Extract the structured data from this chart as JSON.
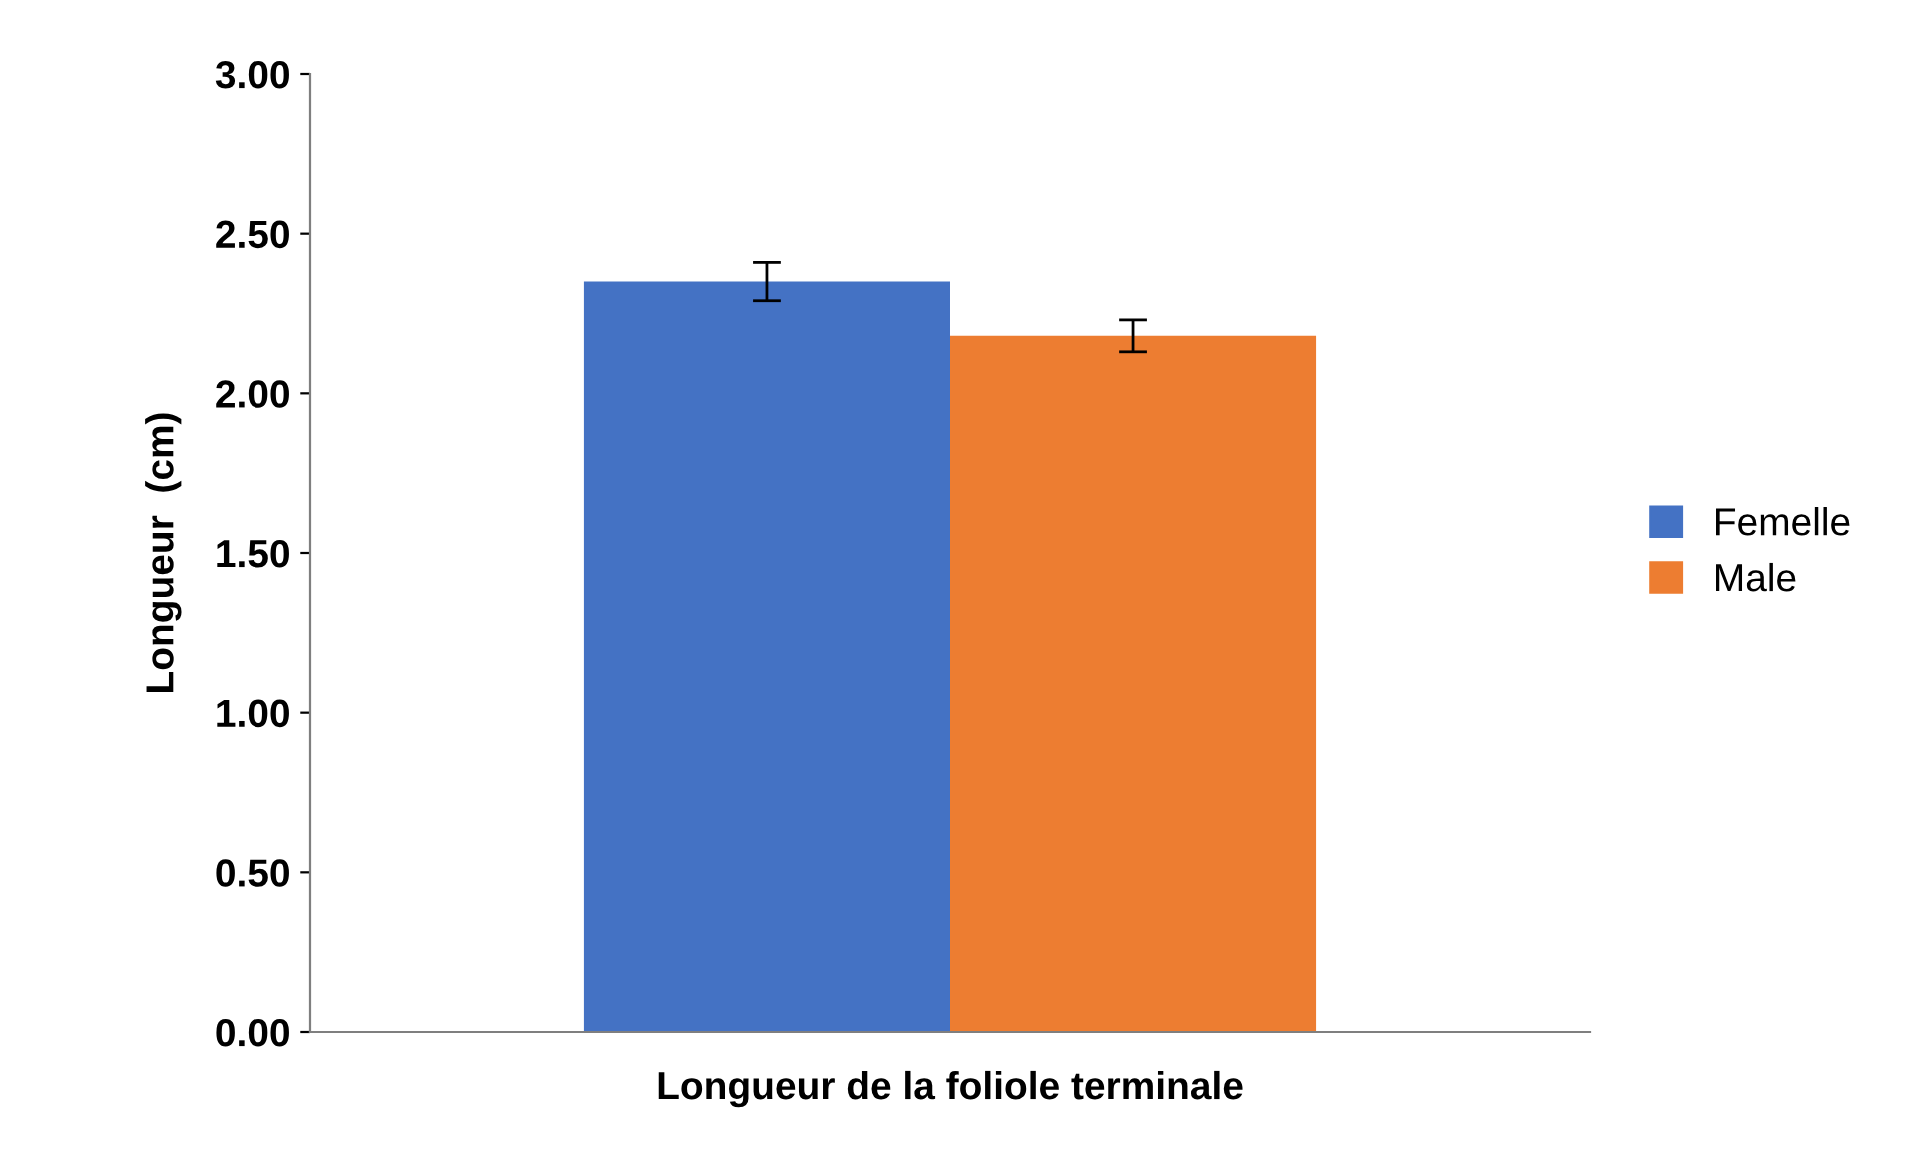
{
  "chart_data": {
    "type": "bar",
    "ylabel": "Longueur  (cm)",
    "categories": [
      "Longueur de la foliole terminale"
    ],
    "series": [
      {
        "name": "Femelle",
        "color": "#4472c4",
        "values": [
          2.35
        ],
        "errors": [
          0.06
        ]
      },
      {
        "name": "Male",
        "color": "#ed7d31",
        "values": [
          2.18
        ],
        "errors": [
          0.05
        ]
      }
    ],
    "ylim": [
      0,
      3
    ],
    "yticks": [
      {
        "value": 0,
        "label": "0.00"
      },
      {
        "value": 0.5,
        "label": "0.50"
      },
      {
        "value": 1,
        "label": "1.00"
      },
      {
        "value": 1.5,
        "label": "1.50"
      },
      {
        "value": 2,
        "label": "2.00"
      },
      {
        "value": 2.5,
        "label": "2.50"
      },
      {
        "value": 3,
        "label": "3.00"
      }
    ],
    "grid": false,
    "legend": "right"
  }
}
